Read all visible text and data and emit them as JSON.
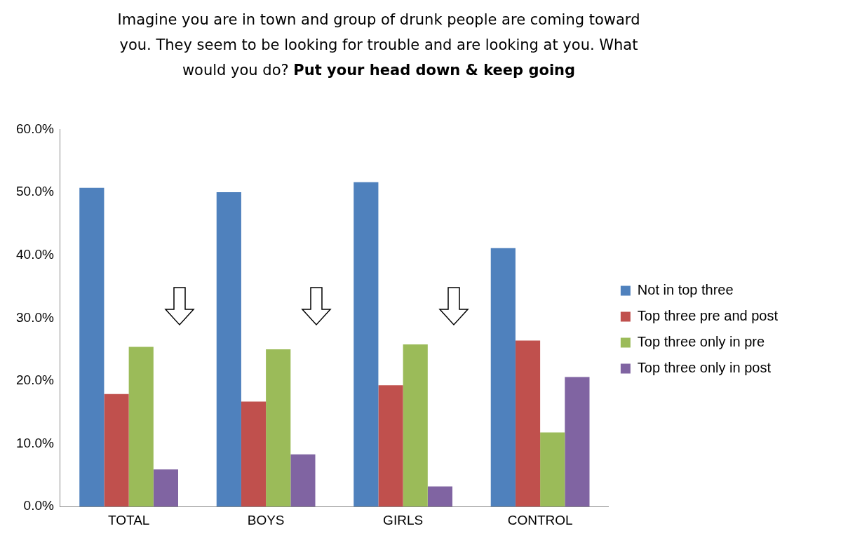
{
  "chart_data": {
    "type": "bar",
    "title": "Imagine you are in town and group of drunk people are coming toward you. They seem to be looking for trouble and are looking at you.   What would you do?",
    "subtitle": "Put your head down & keep going",
    "categories": [
      "TOTAL",
      "BOYS",
      "GIRLS",
      "CONTROL"
    ],
    "series": [
      {
        "name": "Not in top three",
        "color": "#4f81bd",
        "values": [
          50.7,
          50.0,
          51.6,
          41.1
        ]
      },
      {
        "name": "Top three pre and post",
        "color": "#c0504d",
        "values": [
          17.9,
          16.7,
          19.3,
          26.4
        ]
      },
      {
        "name": "Top three only in pre",
        "color": "#9bbb59",
        "values": [
          25.4,
          25.0,
          25.8,
          11.8
        ]
      },
      {
        "name": "Top three only in post",
        "color": "#8064a2",
        "values": [
          5.9,
          8.3,
          3.2,
          20.6
        ]
      }
    ],
    "ylim": [
      0,
      60
    ],
    "yticks": [
      {
        "value": 0,
        "label": "0.0%"
      },
      {
        "value": 10,
        "label": "10.0%"
      },
      {
        "value": 20,
        "label": "20.0%"
      },
      {
        "value": 30,
        "label": "30.0%"
      },
      {
        "value": 40,
        "label": "40.0%"
      },
      {
        "value": 50,
        "label": "50.0%"
      },
      {
        "value": 60,
        "label": "60.0%"
      }
    ],
    "grid": false,
    "legend": "right"
  }
}
